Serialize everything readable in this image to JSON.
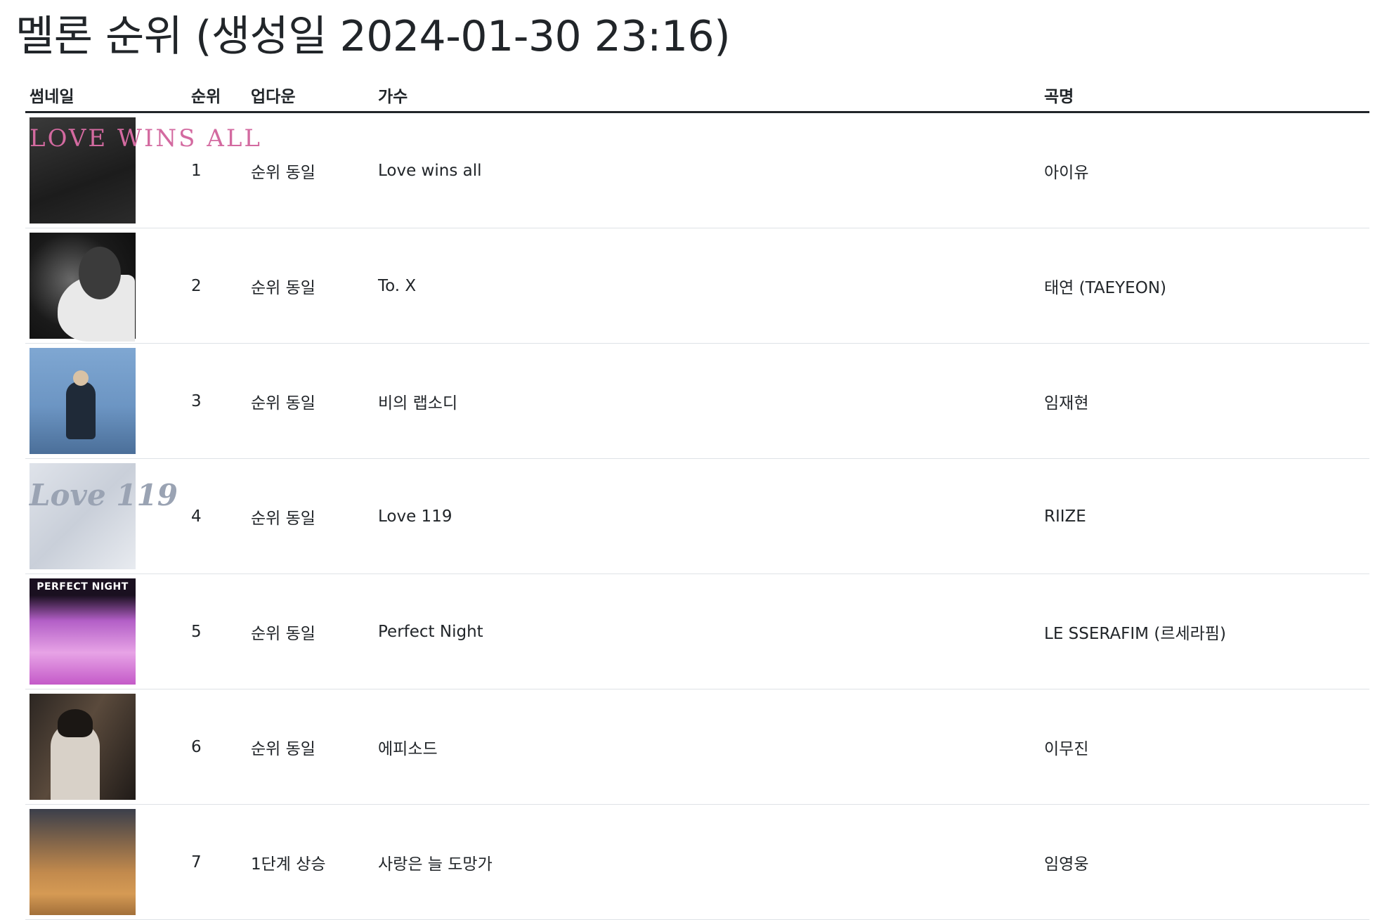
{
  "page_title": "멜론 순위 (생성일 2024-01-30 23:16)",
  "table": {
    "headers": {
      "thumbnail": "썸네일",
      "rank": "순위",
      "updown": "업다운",
      "artist": "가수",
      "song": "곡명"
    },
    "rows": [
      {
        "rank": "1",
        "updown": "순위 동일",
        "artist": "Love wins all",
        "song": "아이유",
        "thumb_text": "LOVE WINS ALL"
      },
      {
        "rank": "2",
        "updown": "순위 동일",
        "artist": "To. X",
        "song": "태연 (TAEYEON)"
      },
      {
        "rank": "3",
        "updown": "순위 동일",
        "artist": "비의 랩소디",
        "song": "임재현"
      },
      {
        "rank": "4",
        "updown": "순위 동일",
        "artist": "Love 119",
        "song": "RIIZE",
        "thumb_text": "Love 119"
      },
      {
        "rank": "5",
        "updown": "순위 동일",
        "artist": "Perfect Night",
        "song": "LE SSERAFIM (르세라핌)",
        "thumb_text": "PERFECT NIGHT"
      },
      {
        "rank": "6",
        "updown": "순위 동일",
        "artist": "에피소드",
        "song": "이무진"
      },
      {
        "rank": "7",
        "updown": "1단계 상승",
        "artist": "사랑은 늘 도망가",
        "song": "임영웅"
      }
    ]
  }
}
